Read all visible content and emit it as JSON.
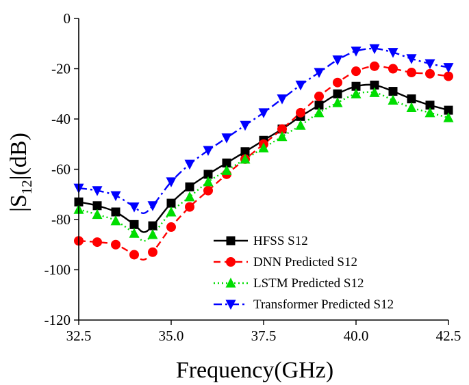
{
  "chart_data": {
    "type": "line",
    "title": "",
    "xlabel": "Frequency(GHz)",
    "ylabel": {
      "prefix": "|S",
      "subscript": "12",
      "suffix": "|(dB)"
    },
    "xlim": [
      32.5,
      42.5
    ],
    "ylim": [
      -120,
      0
    ],
    "xticks": [
      32.5,
      35.0,
      37.5,
      40.0,
      42.5
    ],
    "xtick_labels": [
      "32.5",
      "35.0",
      "37.5",
      "40.0",
      "42.5"
    ],
    "yticks": [
      0,
      -20,
      -40,
      -60,
      -80,
      -100,
      -120
    ],
    "ytick_labels": [
      "0",
      "-20",
      "-40",
      "-60",
      "-80",
      "-100",
      "-120"
    ],
    "grid": false,
    "legend_position": "bottom-right",
    "x": [
      32.5,
      33.0,
      33.5,
      34.0,
      34.5,
      35.0,
      35.5,
      36.0,
      36.5,
      37.0,
      37.5,
      38.0,
      38.5,
      39.0,
      39.5,
      40.0,
      40.5,
      41.0,
      41.5,
      42.0,
      42.5
    ],
    "series": [
      {
        "name": "HFSS S12",
        "color": "#000000",
        "dash": "solid",
        "marker": "square",
        "values": [
          -73,
          -74.5,
          -77,
          -82,
          -82.5,
          -73.5,
          -67,
          -62,
          -57.5,
          -53,
          -48.5,
          -44,
          -39,
          -34.5,
          -30,
          -27,
          -26.5,
          -29,
          -32,
          -34.5,
          -36.5
        ],
        "curve_extra": [
          [
            34.25,
            -85
          ]
        ]
      },
      {
        "name": "DNN Predicted S12",
        "color": "#ff0000",
        "dash": "dashed",
        "marker": "circle",
        "values": [
          -88.5,
          -89,
          -90,
          -94,
          -93,
          -83,
          -75,
          -68.5,
          -62,
          -56,
          -50,
          -44,
          -37.5,
          -31,
          -25.5,
          -21,
          -19,
          -20,
          -21.5,
          -22,
          -23
        ],
        "curve_extra": [
          [
            34.25,
            -96
          ]
        ]
      },
      {
        "name": "LSTM Predicted S12",
        "color": "#00dd00",
        "dash": "dotted",
        "marker": "triangle-up",
        "values": [
          -76,
          -78,
          -80.5,
          -85.5,
          -86,
          -77,
          -71,
          -65,
          -60.5,
          -56,
          -51.5,
          -47,
          -42.5,
          -37.5,
          -33.5,
          -30,
          -29.5,
          -32.5,
          -35.5,
          -37.5,
          -39.5
        ],
        "curve_extra": [
          [
            34.25,
            -88.5
          ]
        ]
      },
      {
        "name": "Transformer Predicted S12",
        "color": "#0000ff",
        "dash": "dashdot",
        "marker": "triangle-down",
        "values": [
          -67.5,
          -68.5,
          -70.5,
          -75,
          -74.5,
          -65,
          -58,
          -52.5,
          -47.5,
          -42.5,
          -37.5,
          -32,
          -26.5,
          -21.5,
          -16.5,
          -13,
          -12,
          -13.5,
          -16,
          -18,
          -19.5
        ],
        "curve_extra": [
          [
            34.25,
            -77.5
          ]
        ]
      }
    ]
  }
}
